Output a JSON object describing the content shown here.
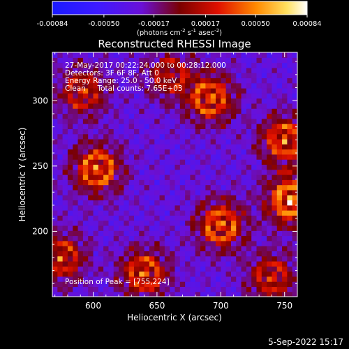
{
  "chart_data": {
    "type": "heatmap",
    "title": "Reconstructed RHESSI Image",
    "xlabel": "Heliocentric X (arcsec)",
    "ylabel": "Heliocentric Y (arcsec)",
    "xlim": [
      568,
      760
    ],
    "ylim": [
      150,
      337
    ],
    "x_ticks": [
      600,
      650,
      700,
      750
    ],
    "y_ticks": [
      200,
      250,
      300
    ],
    "colorbar": {
      "ticks": [
        "-0.00084",
        "-0.00050",
        "-0.00017",
        "0.00017",
        "0.00050",
        "0.00084"
      ],
      "range": [
        -0.00084,
        0.00084
      ],
      "units_base": "(photons cm",
      "units_exp1": "-2",
      "units_mid": " s",
      "units_exp2": "-1",
      "units_mid2": " asec",
      "units_exp3": "-2",
      "units_close": ")"
    },
    "annotations": {
      "line1": "27-May-2017 00:22:24.000 to 00:28:12.000",
      "line2": "Detectors: 3F 6F 8F, Att 0",
      "line3": "Energy Range: 25.0 - 50.0 keV",
      "line4": "Clean     Total counts: 7.65E+03",
      "peak": "Position of Peak = [755,224]"
    },
    "sources": [
      {
        "x": 603,
        "y": 248,
        "value": 0.00066
      },
      {
        "x": 692,
        "y": 302,
        "value": 0.0006
      },
      {
        "x": 700,
        "y": 205,
        "value": 0.00064
      },
      {
        "x": 592,
        "y": 307,
        "value": 0.0004
      },
      {
        "x": 640,
        "y": 168,
        "value": 0.00056
      },
      {
        "x": 575,
        "y": 180,
        "value": 0.00046
      },
      {
        "x": 755,
        "y": 224,
        "value": 0.00084
      },
      {
        "x": 750,
        "y": 270,
        "value": 0.0006
      },
      {
        "x": 740,
        "y": 165,
        "value": 0.0004
      },
      {
        "x": 660,
        "y": 320,
        "value": 0.0003
      }
    ],
    "background_level": -0.0003
  },
  "footer": {
    "timestamp": "5-Sep-2022 15:17"
  }
}
